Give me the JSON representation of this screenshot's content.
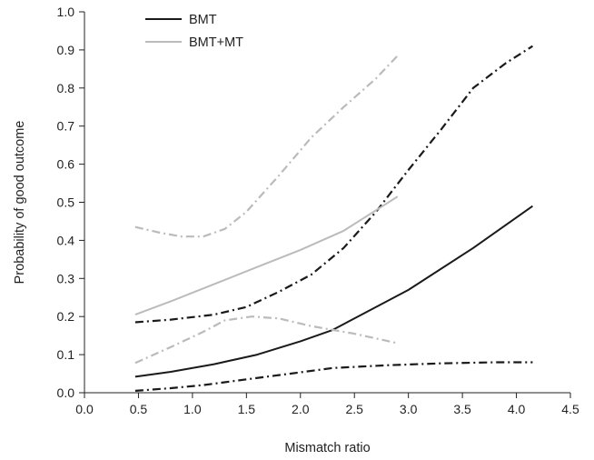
{
  "chart_data": {
    "type": "line",
    "xlabel": "Mismatch ratio",
    "ylabel": "Probability of good outcome",
    "xlim": [
      0.0,
      4.5
    ],
    "ylim": [
      0.0,
      1.0
    ],
    "xticks": [
      "0.0",
      "0.5",
      "1.0",
      "1.5",
      "2.0",
      "2.5",
      "3.0",
      "3.5",
      "4.0",
      "4.5"
    ],
    "yticks": [
      "0.0",
      "0.1",
      "0.2",
      "0.3",
      "0.4",
      "0.5",
      "0.6",
      "0.7",
      "0.8",
      "0.9",
      "1.0"
    ],
    "grid": false,
    "legend_position": "top-left",
    "colors": {
      "BMT": "#1a1a1a",
      "BMT+MT": "#bbbbbb"
    },
    "series": [
      {
        "name": "BMT",
        "role": "estimate",
        "style": "solid",
        "color": "#1a1a1a",
        "x": [
          0.47,
          0.8,
          1.2,
          1.6,
          2.0,
          2.3,
          2.6,
          3.0,
          3.6,
          4.15
        ],
        "y": [
          0.042,
          0.055,
          0.075,
          0.1,
          0.135,
          0.165,
          0.21,
          0.27,
          0.38,
          0.49
        ]
      },
      {
        "name": "BMT",
        "role": "upper CI",
        "style": "dashdot",
        "color": "#1a1a1a",
        "x": [
          0.47,
          0.8,
          1.2,
          1.5,
          1.8,
          2.1,
          2.4,
          2.7,
          3.0,
          3.3,
          3.6,
          3.9,
          4.15
        ],
        "y": [
          0.185,
          0.192,
          0.205,
          0.225,
          0.265,
          0.31,
          0.38,
          0.475,
          0.585,
          0.69,
          0.8,
          0.865,
          0.91
        ]
      },
      {
        "name": "BMT",
        "role": "lower CI",
        "style": "dashdot",
        "color": "#1a1a1a",
        "x": [
          0.47,
          0.8,
          1.1,
          1.5,
          1.9,
          2.3,
          2.8,
          3.3,
          3.8,
          4.15
        ],
        "y": [
          0.005,
          0.012,
          0.02,
          0.035,
          0.05,
          0.065,
          0.072,
          0.077,
          0.08,
          0.08
        ]
      },
      {
        "name": "BMT+MT",
        "role": "estimate",
        "style": "solid",
        "color": "#bbbbbb",
        "x": [
          0.47,
          0.8,
          1.2,
          1.6,
          2.0,
          2.4,
          2.9
        ],
        "y": [
          0.205,
          0.24,
          0.285,
          0.33,
          0.375,
          0.425,
          0.515
        ]
      },
      {
        "name": "BMT+MT",
        "role": "upper CI",
        "style": "dashdot",
        "color": "#bbbbbb",
        "x": [
          0.47,
          0.7,
          0.9,
          1.1,
          1.3,
          1.5,
          1.8,
          2.1,
          2.4,
          2.7,
          2.9
        ],
        "y": [
          0.435,
          0.42,
          0.41,
          0.41,
          0.43,
          0.475,
          0.57,
          0.67,
          0.75,
          0.825,
          0.885
        ]
      },
      {
        "name": "BMT+MT",
        "role": "lower CI",
        "style": "dashdot",
        "color": "#bbbbbb",
        "x": [
          0.47,
          0.8,
          1.1,
          1.3,
          1.55,
          1.8,
          2.1,
          2.5,
          2.9
        ],
        "y": [
          0.078,
          0.12,
          0.16,
          0.19,
          0.2,
          0.195,
          0.175,
          0.155,
          0.13
        ]
      }
    ],
    "legend": [
      {
        "label": "BMT",
        "color": "#1a1a1a"
      },
      {
        "label": "BMT+MT",
        "color": "#bbbbbb"
      }
    ]
  }
}
